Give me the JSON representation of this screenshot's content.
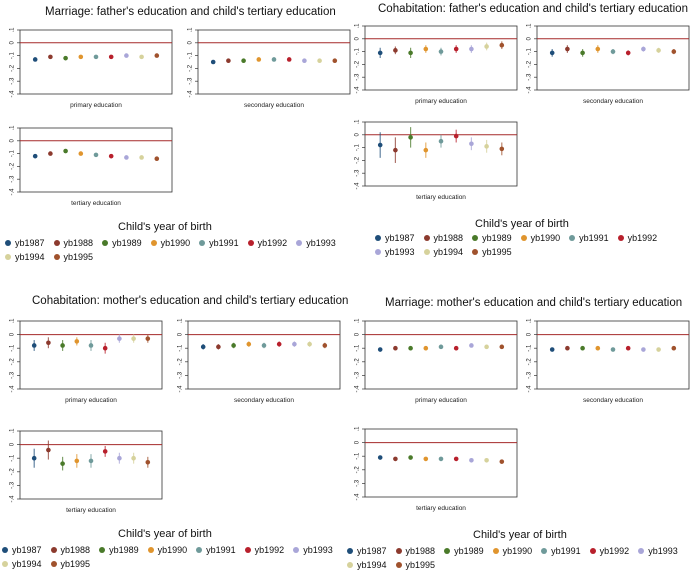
{
  "legend": {
    "title": "Child's year of birth",
    "items": [
      {
        "label": "yb1987",
        "color": "#1f4e79"
      },
      {
        "label": "yb1988",
        "color": "#8c3a2e"
      },
      {
        "label": "yb1989",
        "color": "#4a7a2a"
      },
      {
        "label": "yb1990",
        "color": "#e0952e"
      },
      {
        "label": "yb1991",
        "color": "#6f9a9a"
      },
      {
        "label": "yb1992",
        "color": "#b8202c"
      },
      {
        "label": "yb1993",
        "color": "#a9a6d8"
      },
      {
        "label": "yb1994",
        "color": "#d6d29c"
      },
      {
        "label": "yb1995",
        "color": "#a0522d"
      }
    ]
  },
  "chart_data": [
    {
      "type": "scatter",
      "title": "Marriage: father's education and child's tertiary education",
      "y_ticks": [
        ".1",
        "0",
        "-.1",
        "-.2",
        "-.3",
        "-.4"
      ],
      "ylim": [
        -0.4,
        0.1
      ],
      "reference_line": 0,
      "series_names": [
        "yb1987",
        "yb1988",
        "yb1989",
        "yb1990",
        "yb1991",
        "yb1992",
        "yb1993",
        "yb1994",
        "yb1995"
      ],
      "panels": [
        {
          "xlabel": "primary education",
          "values": [
            -0.13,
            -0.11,
            -0.12,
            -0.11,
            -0.11,
            -0.11,
            -0.1,
            -0.11,
            -0.1
          ],
          "ci": [
            0.01,
            0.01,
            0.01,
            0.01,
            0.01,
            0.01,
            0.01,
            0.01,
            0.01
          ]
        },
        {
          "xlabel": "secondary education",
          "values": [
            -0.15,
            -0.14,
            -0.14,
            -0.13,
            -0.13,
            -0.13,
            -0.14,
            -0.14,
            -0.14
          ],
          "ci": [
            0.01,
            0.01,
            0.01,
            0.01,
            0.01,
            0.01,
            0.01,
            0.01,
            0.01
          ]
        },
        {
          "xlabel": "tertiary education",
          "values": [
            -0.12,
            -0.1,
            -0.08,
            -0.1,
            -0.11,
            -0.12,
            -0.13,
            -0.13,
            -0.14
          ],
          "ci": [
            0.01,
            0.01,
            0.01,
            0.01,
            0.01,
            0.01,
            0.01,
            0.01,
            0.01
          ]
        }
      ]
    },
    {
      "type": "scatter",
      "title": "Cohabitation: father's education and child's tertiary education",
      "y_ticks": [
        ".1",
        "0",
        "-.1",
        "-.2",
        "-.3",
        "-.4"
      ],
      "ylim": [
        -0.4,
        0.1
      ],
      "reference_line": 0,
      "series_names": [
        "yb1987",
        "yb1988",
        "yb1989",
        "yb1990",
        "yb1991",
        "yb1992",
        "yb1993",
        "yb1994",
        "yb1995"
      ],
      "panels": [
        {
          "xlabel": "primary education",
          "values": [
            -0.11,
            -0.09,
            -0.11,
            -0.08,
            -0.1,
            -0.08,
            -0.08,
            -0.06,
            -0.05
          ],
          "ci": [
            0.04,
            0.03,
            0.04,
            0.03,
            0.03,
            0.03,
            0.03,
            0.03,
            0.03
          ]
        },
        {
          "xlabel": "secondary education",
          "values": [
            -0.11,
            -0.08,
            -0.11,
            -0.08,
            -0.1,
            -0.11,
            -0.08,
            -0.09,
            -0.1
          ],
          "ci": [
            0.03,
            0.03,
            0.03,
            0.03,
            0.02,
            0.02,
            0.02,
            0.02,
            0.02
          ]
        },
        {
          "xlabel": "tertiary education",
          "values": [
            -0.08,
            -0.12,
            -0.02,
            -0.12,
            -0.05,
            -0.01,
            -0.07,
            -0.09,
            -0.11
          ],
          "ci": [
            0.1,
            0.1,
            0.08,
            0.06,
            0.05,
            0.05,
            0.05,
            0.05,
            0.05
          ]
        }
      ]
    },
    {
      "type": "scatter",
      "title": "Cohabitation: mother's education and child's tertiary education",
      "y_ticks": [
        ".1",
        "0",
        "-.1",
        "-.2",
        "-.3",
        "-.4"
      ],
      "ylim": [
        -0.4,
        0.1
      ],
      "reference_line": 0,
      "series_names": [
        "yb1987",
        "yb1988",
        "yb1989",
        "yb1990",
        "yb1991",
        "yb1992",
        "yb1993",
        "yb1994",
        "yb1995"
      ],
      "panels": [
        {
          "xlabel": "primary education",
          "values": [
            -0.08,
            -0.06,
            -0.08,
            -0.05,
            -0.08,
            -0.1,
            -0.03,
            -0.03,
            -0.03
          ],
          "ci": [
            0.04,
            0.04,
            0.04,
            0.03,
            0.04,
            0.04,
            0.03,
            0.03,
            0.03
          ]
        },
        {
          "xlabel": "secondary education",
          "values": [
            -0.09,
            -0.09,
            -0.08,
            -0.07,
            -0.08,
            -0.07,
            -0.07,
            -0.07,
            -0.08
          ],
          "ci": [
            0.02,
            0.02,
            0.02,
            0.02,
            0.02,
            0.02,
            0.02,
            0.02,
            0.02
          ]
        },
        {
          "xlabel": "tertiary education",
          "values": [
            -0.1,
            -0.04,
            -0.14,
            -0.12,
            -0.12,
            -0.05,
            -0.1,
            -0.1,
            -0.13
          ],
          "ci": [
            0.07,
            0.07,
            0.05,
            0.05,
            0.05,
            0.04,
            0.04,
            0.04,
            0.04
          ]
        }
      ]
    },
    {
      "type": "scatter",
      "title": "Marriage: mother's education and child's tertiary education",
      "y_ticks": [
        ".1",
        "0",
        "-.1",
        "-.2",
        "-.3",
        "-.4"
      ],
      "ylim": [
        -0.4,
        0.1
      ],
      "reference_line": 0,
      "series_names": [
        "yb1987",
        "yb1988",
        "yb1989",
        "yb1990",
        "yb1991",
        "yb1992",
        "yb1993",
        "yb1994",
        "yb1995"
      ],
      "panels": [
        {
          "xlabel": "primary education",
          "values": [
            -0.11,
            -0.1,
            -0.1,
            -0.1,
            -0.09,
            -0.1,
            -0.08,
            -0.09,
            -0.09
          ],
          "ci": [
            0.015,
            0.015,
            0.015,
            0.015,
            0.015,
            0.015,
            0.015,
            0.015,
            0.015
          ]
        },
        {
          "xlabel": "secondary education",
          "values": [
            -0.11,
            -0.1,
            -0.1,
            -0.1,
            -0.11,
            -0.1,
            -0.11,
            -0.11,
            -0.1
          ],
          "ci": [
            0.01,
            0.01,
            0.01,
            0.01,
            0.01,
            0.01,
            0.01,
            0.01,
            0.01
          ]
        },
        {
          "xlabel": "tertiary education",
          "values": [
            -0.11,
            -0.12,
            -0.11,
            -0.12,
            -0.12,
            -0.12,
            -0.13,
            -0.13,
            -0.14
          ],
          "ci": [
            0.01,
            0.01,
            0.01,
            0.01,
            0.01,
            0.01,
            0.01,
            0.01,
            0.01
          ]
        }
      ]
    }
  ]
}
